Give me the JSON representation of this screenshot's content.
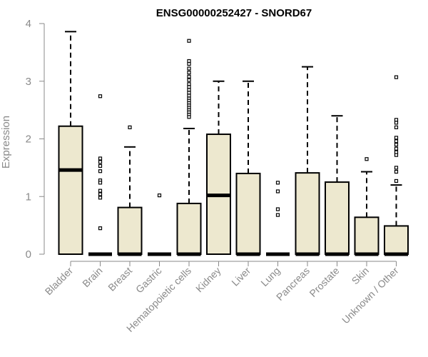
{
  "chart_data": {
    "type": "box",
    "title": "ENSG00000252427 - SNORD67",
    "xlabel": "",
    "ylabel": "Expression",
    "ylim": [
      0,
      4
    ],
    "yticks": [
      0,
      1,
      2,
      3,
      4
    ],
    "grid": false,
    "colors": {
      "box_fill": "#ede8cf",
      "stroke": "#000000",
      "axis": "#8a8a8a"
    },
    "categories": [
      "Bladder",
      "Brain",
      "Breast",
      "Gastric",
      "Hematopoietic cells",
      "Kidney",
      "Liver",
      "Lung",
      "Pancreas",
      "Prostate",
      "Skin",
      "Unknown / Other"
    ],
    "boxes": [
      {
        "category": "Bladder",
        "whisker_low": 0,
        "q1": 0,
        "median": 1.46,
        "q3": 2.22,
        "whisker_high": 3.86,
        "outliers": []
      },
      {
        "category": "Brain",
        "whisker_low": 0,
        "q1": 0,
        "median": 0,
        "q3": 0,
        "whisker_high": 0,
        "outliers": [
          2.74,
          1.66,
          1.6,
          1.53,
          1.44,
          1.28,
          1.24,
          1.1,
          1.04,
          0.98,
          0.45
        ]
      },
      {
        "category": "Breast",
        "whisker_low": 0,
        "q1": 0,
        "median": 0,
        "q3": 0.81,
        "whisker_high": 1.86,
        "outliers": [
          2.2
        ]
      },
      {
        "category": "Gastric",
        "whisker_low": 0,
        "q1": 0,
        "median": 0,
        "q3": 0,
        "whisker_high": 0,
        "outliers": [
          1.02
        ]
      },
      {
        "category": "Hematopoietic cells",
        "whisker_low": 0,
        "q1": 0,
        "median": 0,
        "q3": 0.88,
        "whisker_high": 2.18,
        "outliers": [
          3.7,
          3.35,
          3.3,
          3.22,
          3.15,
          3.08,
          3.02,
          2.95,
          2.9,
          2.85,
          2.8,
          2.75,
          2.7,
          2.66,
          2.62,
          2.58,
          2.54,
          2.5,
          2.46,
          2.42,
          2.38
        ]
      },
      {
        "category": "Kidney",
        "whisker_low": 0,
        "q1": 0,
        "median": 1.02,
        "q3": 2.08,
        "whisker_high": 3.0,
        "outliers": []
      },
      {
        "category": "Liver",
        "whisker_low": 0,
        "q1": 0,
        "median": 0,
        "q3": 1.4,
        "whisker_high": 3.0,
        "outliers": []
      },
      {
        "category": "Lung",
        "whisker_low": 0,
        "q1": 0,
        "median": 0,
        "q3": 0,
        "whisker_high": 0,
        "outliers": [
          1.24,
          1.09,
          0.78,
          0.68
        ]
      },
      {
        "category": "Pancreas",
        "whisker_low": 0,
        "q1": 0,
        "median": 0,
        "q3": 1.41,
        "whisker_high": 3.25,
        "outliers": []
      },
      {
        "category": "Prostate",
        "whisker_low": 0,
        "q1": 0,
        "median": 0,
        "q3": 1.25,
        "whisker_high": 2.4,
        "outliers": []
      },
      {
        "category": "Skin",
        "whisker_low": 0,
        "q1": 0,
        "median": 0,
        "q3": 0.64,
        "whisker_high": 1.43,
        "outliers": [
          1.65
        ]
      },
      {
        "category": "Unknown / Other",
        "whisker_low": 0,
        "q1": 0,
        "median": 0,
        "q3": 0.49,
        "whisker_high": 1.2,
        "outliers": [
          3.07,
          2.33,
          2.28,
          2.2,
          2.02,
          1.96,
          1.9,
          1.83,
          1.77,
          1.72,
          1.5,
          1.43,
          1.27
        ]
      }
    ]
  }
}
